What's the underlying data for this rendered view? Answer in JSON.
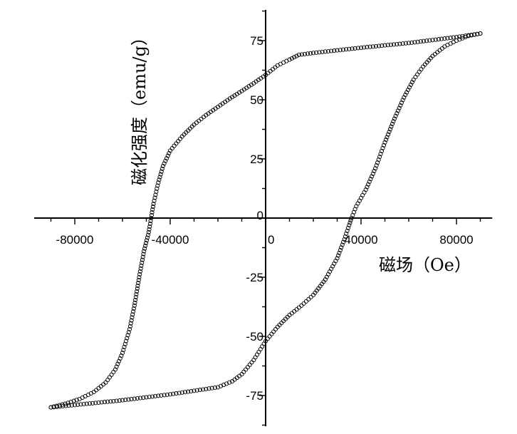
{
  "chart_data": {
    "type": "scatter",
    "title": "",
    "xlabel": "磁场（Oe）",
    "ylabel": "磁化强度（emu/g）",
    "xlim": [
      -97000,
      95000
    ],
    "ylim": [
      -88,
      88
    ],
    "grid": false,
    "legend": "none",
    "marker": "open-circle",
    "color": "#000000",
    "xticks": [
      -80000,
      -40000,
      0,
      40000,
      80000
    ],
    "xtick_labels": [
      "-80000",
      "-40000",
      "0",
      "40000",
      "80000"
    ],
    "yticks": [
      -75,
      -50,
      -25,
      0,
      25,
      50,
      75
    ],
    "ytick_labels": [
      "-75",
      "-50",
      "-25",
      "0",
      "25",
      "50",
      "75"
    ],
    "series": [
      {
        "branch": "descending",
        "points": [
          [
            90000,
            78
          ],
          [
            80000,
            76.5
          ],
          [
            60000,
            74
          ],
          [
            40000,
            72
          ],
          [
            20000,
            69.8
          ],
          [
            14000,
            69
          ],
          [
            10000,
            67
          ],
          [
            5000,
            64.5
          ],
          [
            0,
            60.5
          ],
          [
            -5000,
            57
          ],
          [
            -10000,
            53.7
          ],
          [
            -15000,
            50.5
          ],
          [
            -20000,
            47
          ],
          [
            -25000,
            43.5
          ],
          [
            -30000,
            39.5
          ],
          [
            -35000,
            34.5
          ],
          [
            -40000,
            28.5
          ],
          [
            -43000,
            22
          ],
          [
            -45000,
            15
          ],
          [
            -47000,
            6
          ],
          [
            -48000,
            0
          ],
          [
            -49000,
            -6
          ],
          [
            -51000,
            -14
          ],
          [
            -53000,
            -25
          ],
          [
            -55000,
            -37
          ],
          [
            -57000,
            -47
          ],
          [
            -60000,
            -57
          ],
          [
            -63000,
            -64
          ],
          [
            -67000,
            -69.5
          ],
          [
            -72000,
            -73.5
          ],
          [
            -78000,
            -76.5
          ],
          [
            -84000,
            -78.5
          ],
          [
            -90000,
            -80
          ]
        ]
      },
      {
        "branch": "ascending",
        "points": [
          [
            -90000,
            -80
          ],
          [
            -80000,
            -79
          ],
          [
            -60000,
            -77
          ],
          [
            -40000,
            -74.5
          ],
          [
            -20000,
            -71.5
          ],
          [
            -14000,
            -69
          ],
          [
            -10000,
            -66
          ],
          [
            -5000,
            -60
          ],
          [
            0,
            -52
          ],
          [
            5000,
            -46
          ],
          [
            10000,
            -41
          ],
          [
            15000,
            -37
          ],
          [
            20000,
            -32.5
          ],
          [
            25000,
            -26
          ],
          [
            30000,
            -17
          ],
          [
            33000,
            -9
          ],
          [
            35000,
            -3
          ],
          [
            36000,
            0
          ],
          [
            38000,
            5
          ],
          [
            42000,
            12
          ],
          [
            46000,
            21
          ],
          [
            50000,
            32
          ],
          [
            54000,
            42
          ],
          [
            58000,
            51
          ],
          [
            62000,
            58.5
          ],
          [
            66000,
            64
          ],
          [
            70000,
            68.5
          ],
          [
            75000,
            72.5
          ],
          [
            80000,
            75
          ],
          [
            85000,
            77
          ],
          [
            90000,
            78
          ]
        ]
      }
    ]
  }
}
